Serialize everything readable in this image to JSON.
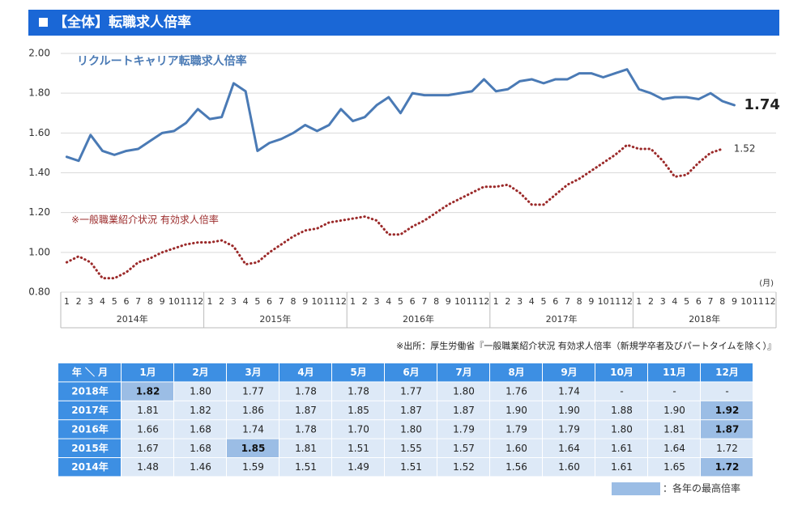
{
  "header": {
    "title": "【全体】転職求人倍率"
  },
  "chart_data": {
    "type": "line",
    "categories": [
      "1",
      "2",
      "3",
      "4",
      "5",
      "6",
      "7",
      "8",
      "9",
      "10",
      "11",
      "12",
      "1",
      "2",
      "3",
      "4",
      "5",
      "6",
      "7",
      "8",
      "9",
      "10",
      "11",
      "12",
      "1",
      "2",
      "3",
      "4",
      "5",
      "6",
      "7",
      "8",
      "9",
      "10",
      "11",
      "12",
      "1",
      "2",
      "3",
      "4",
      "5",
      "6",
      "7",
      "8",
      "9",
      "10",
      "11",
      "12",
      "1",
      "2",
      "3",
      "4",
      "5",
      "6",
      "7",
      "8",
      "9",
      "10",
      "11",
      "12"
    ],
    "years": [
      "2014年",
      "2015年",
      "2016年",
      "2017年",
      "2018年"
    ],
    "x_unit": "(月)",
    "ylim": [
      0.8,
      2.0
    ],
    "yticks": [
      {
        "value": 0.8,
        "label": "0.80"
      },
      {
        "value": 1.0,
        "label": "1.00"
      },
      {
        "value": 1.2,
        "label": "1.20"
      },
      {
        "value": 1.4,
        "label": "1.40"
      },
      {
        "value": 1.6,
        "label": "1.60"
      },
      {
        "value": 1.8,
        "label": "1.80"
      },
      {
        "value": 2.0,
        "label": "2.00"
      }
    ],
    "grid": true,
    "series": [
      {
        "name": "リクルートキャリア転職求人倍率",
        "color": "#4a7ab5",
        "style": "solid",
        "values": [
          1.48,
          1.46,
          1.59,
          1.51,
          1.49,
          1.51,
          1.52,
          1.56,
          1.6,
          1.61,
          1.65,
          1.72,
          1.67,
          1.68,
          1.85,
          1.81,
          1.51,
          1.55,
          1.57,
          1.6,
          1.64,
          1.61,
          1.64,
          1.72,
          1.66,
          1.68,
          1.74,
          1.78,
          1.7,
          1.8,
          1.79,
          1.79,
          1.79,
          1.8,
          1.81,
          1.87,
          1.81,
          1.82,
          1.86,
          1.87,
          1.85,
          1.87,
          1.87,
          1.9,
          1.9,
          1.88,
          1.9,
          1.92,
          1.82,
          1.8,
          1.77,
          1.78,
          1.78,
          1.77,
          1.8,
          1.76,
          1.74,
          null,
          null,
          null
        ],
        "value_labels": [
          null,
          null,
          null,
          null,
          null,
          null,
          null,
          null,
          null,
          null,
          null,
          null,
          null,
          null,
          null,
          null,
          null,
          null,
          null,
          null,
          null,
          null,
          null,
          null,
          null,
          null,
          null,
          null,
          null,
          null,
          null,
          null,
          null,
          null,
          null,
          null,
          null,
          null,
          null,
          null,
          null,
          null,
          null,
          null,
          null,
          null,
          null,
          null,
          null,
          null,
          null,
          null,
          null,
          null,
          null,
          null,
          "1.74",
          null,
          null,
          null
        ]
      },
      {
        "name": "※一般職業紹介状況 有効求人倍率",
        "color": "#9b2a2a",
        "style": "dotted",
        "values": [
          0.95,
          0.98,
          0.95,
          0.87,
          0.87,
          0.9,
          0.95,
          0.97,
          1.0,
          1.02,
          1.04,
          1.05,
          1.05,
          1.06,
          1.03,
          0.94,
          0.95,
          1.0,
          1.04,
          1.08,
          1.11,
          1.12,
          1.15,
          1.16,
          1.17,
          1.18,
          1.16,
          1.09,
          1.09,
          1.13,
          1.16,
          1.2,
          1.24,
          1.27,
          1.3,
          1.33,
          1.33,
          1.34,
          1.3,
          1.24,
          1.24,
          1.29,
          1.34,
          1.37,
          1.41,
          1.45,
          1.49,
          1.54,
          1.52,
          1.52,
          1.46,
          1.38,
          1.39,
          1.45,
          1.5,
          1.52,
          null,
          null,
          null,
          null
        ],
        "value_labels": [
          null,
          null,
          null,
          null,
          null,
          null,
          null,
          null,
          null,
          null,
          null,
          null,
          null,
          null,
          null,
          null,
          null,
          null,
          null,
          null,
          null,
          null,
          null,
          null,
          null,
          null,
          null,
          null,
          null,
          null,
          null,
          null,
          null,
          null,
          null,
          null,
          null,
          null,
          null,
          null,
          null,
          null,
          null,
          null,
          null,
          null,
          null,
          null,
          null,
          null,
          null,
          null,
          null,
          null,
          null,
          "1.52",
          null,
          null,
          null,
          null
        ]
      }
    ]
  },
  "source": "※出所：厚生労働省『一般職業紹介状況 有効求人倍率（新規学卒者及びパートタイムを除く）』",
  "table": {
    "header": [
      "年 ＼ 月",
      "1月",
      "2月",
      "3月",
      "4月",
      "5月",
      "6月",
      "7月",
      "8月",
      "9月",
      "10月",
      "11月",
      "12月"
    ],
    "rows": [
      [
        "2018年",
        "1.82",
        "1.80",
        "1.77",
        "1.78",
        "1.78",
        "1.77",
        "1.80",
        "1.76",
        "1.74",
        "-",
        "-",
        "-"
      ],
      [
        "2017年",
        "1.81",
        "1.82",
        "1.86",
        "1.87",
        "1.85",
        "1.87",
        "1.87",
        "1.90",
        "1.90",
        "1.88",
        "1.90",
        "1.92"
      ],
      [
        "2016年",
        "1.66",
        "1.68",
        "1.74",
        "1.78",
        "1.70",
        "1.80",
        "1.79",
        "1.79",
        "1.79",
        "1.80",
        "1.81",
        "1.87"
      ],
      [
        "2015年",
        "1.67",
        "1.68",
        "1.85",
        "1.81",
        "1.51",
        "1.55",
        "1.57",
        "1.60",
        "1.64",
        "1.61",
        "1.64",
        "1.72"
      ],
      [
        "2014年",
        "1.48",
        "1.46",
        "1.59",
        "1.51",
        "1.49",
        "1.51",
        "1.52",
        "1.56",
        "1.60",
        "1.61",
        "1.65",
        "1.72"
      ]
    ],
    "highlight": [
      1,
      12,
      12,
      3,
      12
    ],
    "legend": "：各年の最高倍率"
  }
}
